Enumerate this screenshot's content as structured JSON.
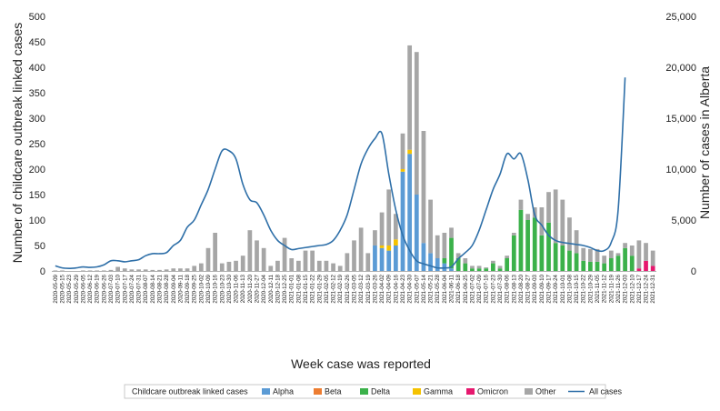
{
  "chart_data": {
    "type": "bar",
    "xlabel": "Week case was reported",
    "ylabel_left": "Number of childcare outbreak linked cases",
    "ylabel_right": "Number of cases in Alberta",
    "ylim_left": [
      0,
      500
    ],
    "ylim_right": [
      0,
      25000
    ],
    "yticks_left": [
      "0",
      "50",
      "100",
      "150",
      "200",
      "250",
      "300",
      "350",
      "400",
      "450",
      "500"
    ],
    "yticks_right": [
      "0",
      "5,000",
      "10,000",
      "15,000",
      "20,000",
      "25,000"
    ],
    "legend_title": "Childcare outbreak linked cases",
    "grid": false,
    "legend_position": "bottom",
    "colors": {
      "Alpha": "#5b9bd5",
      "Beta": "#ed7d31",
      "Delta": "#3bb14a",
      "Gamma": "#f5c200",
      "Omicron": "#e6186e",
      "Other": "#a6a6a6",
      "All cases": "#2e6fa8"
    },
    "categories": [
      "2020-05-09",
      "2020-05-15",
      "2020-05-23",
      "2020-05-29",
      "2020-06-05",
      "2020-06-12",
      "2020-06-19",
      "2020-06-26",
      "2020-07-03",
      "2020-07-10",
      "2020-07-17",
      "2020-07-24",
      "2020-07-31",
      "2020-08-07",
      "2020-08-14",
      "2020-08-21",
      "2020-08-28",
      "2020-09-04",
      "2020-09-11",
      "2020-09-18",
      "2020-09-25",
      "2020-10-02",
      "2020-10-09",
      "2020-10-16",
      "2020-10-23",
      "2020-10-30",
      "2020-11-06",
      "2020-11-13",
      "2020-11-20",
      "2020-11-27",
      "2020-12-04",
      "2020-12-11",
      "2020-12-18",
      "2020-12-25",
      "2021-01-01",
      "2021-01-08",
      "2021-01-15",
      "2021-01-22",
      "2021-01-29",
      "2021-02-05",
      "2021-02-12",
      "2021-02-19",
      "2021-02-26",
      "2021-03-05",
      "2021-03-12",
      "2021-03-19",
      "2021-03-26",
      "2021-04-02",
      "2021-04-09",
      "2021-04-16",
      "2021-04-23",
      "2021-04-30",
      "2021-05-07",
      "2021-05-14",
      "2021-05-21",
      "2021-05-28",
      "2021-06-04",
      "2021-06-11",
      "2021-06-18",
      "2021-06-25",
      "2021-07-02",
      "2021-07-09",
      "2021-07-16",
      "2021-07-23",
      "2021-07-30",
      "2021-08-06",
      "2021-08-13",
      "2021-08-20",
      "2021-08-27",
      "2021-09-03",
      "2021-09-10",
      "2021-09-17",
      "2021-09-24",
      "2021-10-01",
      "2021-10-08",
      "2021-10-15",
      "2021-10-22",
      "2021-10-29",
      "2021-11-05",
      "2021-11-12",
      "2021-11-19",
      "2021-11-26",
      "2021-12-03",
      "2021-12-10",
      "2021-12-17",
      "2021-12-24",
      "2021-12-31"
    ],
    "series": [
      {
        "name": "Alpha",
        "values": [
          0,
          0,
          0,
          0,
          0,
          0,
          0,
          0,
          0,
          0,
          0,
          0,
          0,
          0,
          0,
          0,
          0,
          0,
          0,
          0,
          0,
          0,
          0,
          0,
          0,
          0,
          0,
          0,
          0,
          0,
          0,
          0,
          0,
          0,
          0,
          0,
          0,
          0,
          0,
          0,
          0,
          0,
          0,
          0,
          0,
          0,
          50,
          45,
          40,
          50,
          195,
          230,
          150,
          55,
          35,
          25,
          15,
          5,
          0,
          0,
          0,
          0,
          0,
          0,
          0,
          0,
          0,
          0,
          0,
          0,
          0,
          0,
          0,
          0,
          0,
          0,
          0,
          0,
          0,
          0,
          0,
          0,
          0,
          0,
          0,
          0,
          0
        ]
      },
      {
        "name": "Beta",
        "values": [
          0,
          0,
          0,
          0,
          0,
          0,
          0,
          0,
          0,
          0,
          0,
          0,
          0,
          0,
          0,
          0,
          0,
          0,
          0,
          0,
          0,
          0,
          0,
          0,
          0,
          0,
          0,
          0,
          0,
          0,
          0,
          0,
          0,
          0,
          0,
          0,
          0,
          0,
          0,
          0,
          0,
          0,
          0,
          0,
          0,
          0,
          0,
          0,
          0,
          0,
          0,
          0,
          0,
          0,
          0,
          0,
          0,
          0,
          0,
          0,
          0,
          0,
          0,
          0,
          0,
          0,
          0,
          0,
          0,
          0,
          0,
          0,
          0,
          0,
          0,
          0,
          0,
          0,
          0,
          0,
          0,
          0,
          0,
          0,
          0,
          0,
          0
        ]
      },
      {
        "name": "Delta",
        "values": [
          0,
          0,
          0,
          0,
          0,
          0,
          0,
          0,
          0,
          0,
          0,
          0,
          0,
          0,
          0,
          0,
          0,
          0,
          0,
          0,
          0,
          0,
          0,
          0,
          0,
          0,
          0,
          0,
          0,
          0,
          0,
          0,
          0,
          0,
          0,
          0,
          0,
          0,
          0,
          0,
          0,
          0,
          0,
          0,
          0,
          0,
          0,
          0,
          0,
          0,
          0,
          0,
          0,
          0,
          0,
          0,
          10,
          60,
          25,
          15,
          5,
          5,
          5,
          15,
          5,
          25,
          70,
          120,
          100,
          105,
          70,
          95,
          55,
          50,
          40,
          35,
          20,
          18,
          18,
          15,
          25,
          30,
          45,
          30,
          0,
          0,
          0
        ]
      },
      {
        "name": "Gamma",
        "values": [
          0,
          0,
          0,
          0,
          0,
          0,
          0,
          0,
          0,
          0,
          0,
          0,
          0,
          0,
          0,
          0,
          0,
          0,
          0,
          0,
          0,
          0,
          0,
          0,
          0,
          0,
          0,
          0,
          0,
          0,
          0,
          0,
          0,
          0,
          0,
          0,
          0,
          0,
          0,
          0,
          0,
          0,
          0,
          0,
          0,
          0,
          0,
          5,
          10,
          12,
          5,
          8,
          0,
          0,
          0,
          0,
          0,
          0,
          0,
          0,
          0,
          0,
          0,
          0,
          0,
          0,
          0,
          0,
          0,
          0,
          0,
          0,
          0,
          0,
          0,
          0,
          0,
          0,
          0,
          0,
          0,
          0,
          0,
          0,
          0,
          0,
          0
        ]
      },
      {
        "name": "Omicron",
        "values": [
          0,
          0,
          0,
          0,
          0,
          0,
          0,
          0,
          0,
          0,
          0,
          0,
          0,
          0,
          0,
          0,
          0,
          0,
          0,
          0,
          0,
          0,
          0,
          0,
          0,
          0,
          0,
          0,
          0,
          0,
          0,
          0,
          0,
          0,
          0,
          0,
          0,
          0,
          0,
          0,
          0,
          0,
          0,
          0,
          0,
          0,
          0,
          0,
          0,
          0,
          0,
          0,
          0,
          0,
          0,
          0,
          0,
          0,
          0,
          0,
          0,
          0,
          0,
          0,
          0,
          0,
          0,
          0,
          0,
          0,
          0,
          0,
          0,
          0,
          0,
          0,
          0,
          0,
          0,
          0,
          0,
          0,
          0,
          0,
          5,
          20,
          10
        ]
      },
      {
        "name": "Other",
        "values": [
          1,
          1,
          0,
          0,
          1,
          1,
          1,
          1,
          2,
          8,
          5,
          3,
          3,
          3,
          2,
          2,
          3,
          5,
          5,
          5,
          10,
          15,
          45,
          75,
          15,
          18,
          20,
          30,
          80,
          60,
          45,
          10,
          20,
          65,
          25,
          20,
          40,
          40,
          20,
          20,
          15,
          10,
          35,
          60,
          85,
          35,
          30,
          65,
          110,
          50,
          70,
          205,
          280,
          220,
          105,
          45,
          50,
          20,
          10,
          10,
          5,
          5,
          2,
          5,
          5,
          5,
          5,
          20,
          12,
          20,
          55,
          60,
          105,
          90,
          65,
          45,
          25,
          25,
          25,
          15,
          15,
          5,
          10,
          20,
          55,
          35,
          30
        ]
      },
      {
        "name": "All cases",
        "values": [
          500,
          300,
          250,
          300,
          400,
          350,
          400,
          600,
          1000,
          1000,
          900,
          1000,
          1100,
          1500,
          1700,
          1700,
          1800,
          2500,
          3000,
          4300,
          5000,
          6500,
          8000,
          10000,
          11800,
          11800,
          11000,
          8500,
          7000,
          6700,
          5500,
          4000,
          3000,
          2500,
          2100,
          2200,
          2300,
          2400,
          2500,
          2600,
          3000,
          4000,
          5500,
          8000,
          10500,
          12000,
          13000,
          13500,
          9500,
          6000,
          3500,
          2000,
          1000,
          700,
          500,
          300,
          300,
          400,
          1200,
          1800,
          2500,
          4000,
          6000,
          8000,
          9500,
          11500,
          11000,
          11500,
          9000,
          5500,
          4500,
          3500,
          3000,
          2800,
          2700,
          2600,
          2500,
          2300,
          2000,
          2000,
          2800,
          6000,
          19000,
          0,
          0,
          0,
          0
        ]
      }
    ]
  }
}
